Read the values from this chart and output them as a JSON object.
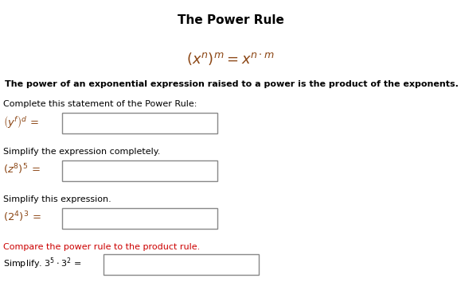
{
  "title": "The Power Rule",
  "title_fontsize": 11,
  "title_fontweight": "bold",
  "yellow_bg_color": "#FFFF66",
  "yellow_border_color": "#CCCC00",
  "yellow_description": "The power of an exponential expression raised to a power is the product of the exponents.",
  "section1_label": "Complete this statement of the Power Rule:",
  "section2_label": "Simplify the expression completely.",
  "section3_label": "Simplify this expression.",
  "section4_label": "Compare the power rule to the product rule.",
  "section4_label_color": "#CC0000",
  "input_box_color": "white",
  "input_box_border": "#888888",
  "text_color": "#000000",
  "expr_color": "#8B4513",
  "bg_color": "white",
  "fig_width": 5.79,
  "fig_height": 3.55,
  "dpi": 100
}
